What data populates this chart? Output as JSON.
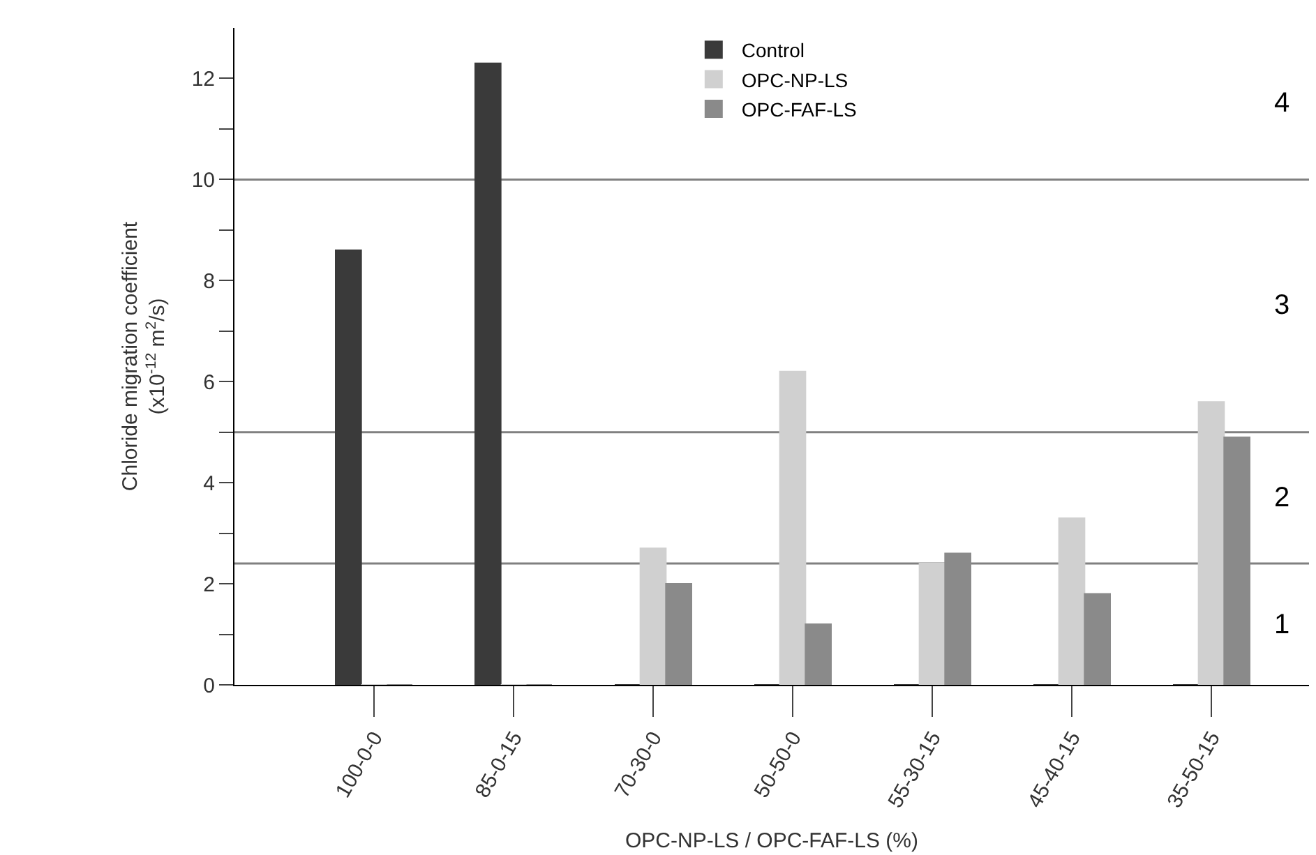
{
  "chart_data": {
    "type": "bar",
    "xlabel": "OPC-NP-LS / OPC-FAF-LS (%)",
    "ylabel": "Chloride migration coefficient\n(x10$^{-12}$ m$^{2}$/s)",
    "categories": [
      "100-0-0",
      "85-0-15",
      "70-30-0",
      "50-50-0",
      "55-30-15",
      "45-40-15",
      "35-50-15"
    ],
    "series": [
      {
        "name": "Control",
        "color": "#3a3a3a",
        "values": [
          8.6,
          12.3,
          0,
          0,
          0,
          0,
          0
        ]
      },
      {
        "name": "OPC-NP-LS",
        "color": "#d0d0d0",
        "values": [
          0,
          0,
          2.7,
          6.2,
          2.4,
          3.3,
          5.6
        ]
      },
      {
        "name": "OPC-FAF-LS",
        "color": "#8a8a8a",
        "values": [
          0,
          0,
          2.0,
          1.2,
          2.6,
          1.8,
          4.9
        ]
      }
    ],
    "ylim": [
      0,
      13
    ],
    "yticks": [
      0,
      {
        "value": 1,
        "label": null
      },
      2,
      {
        "value": 3,
        "label": null
      },
      4,
      {
        "value": 5,
        "label": null
      },
      6,
      {
        "value": 7,
        "label": null
      },
      8,
      {
        "value": 9,
        "label": null
      },
      10,
      {
        "value": 11,
        "label": null
      },
      12
    ],
    "ref_lines": [
      {
        "axis": "y",
        "value": 2.4,
        "color": "#808080"
      },
      {
        "axis": "y",
        "value": 5,
        "color": "#808080"
      },
      {
        "axis": "y",
        "value": 10,
        "color": "#808080"
      }
    ],
    "annotations": [
      "1",
      "2",
      "3",
      "4"
    ],
    "grid": false,
    "legend": "top"
  }
}
